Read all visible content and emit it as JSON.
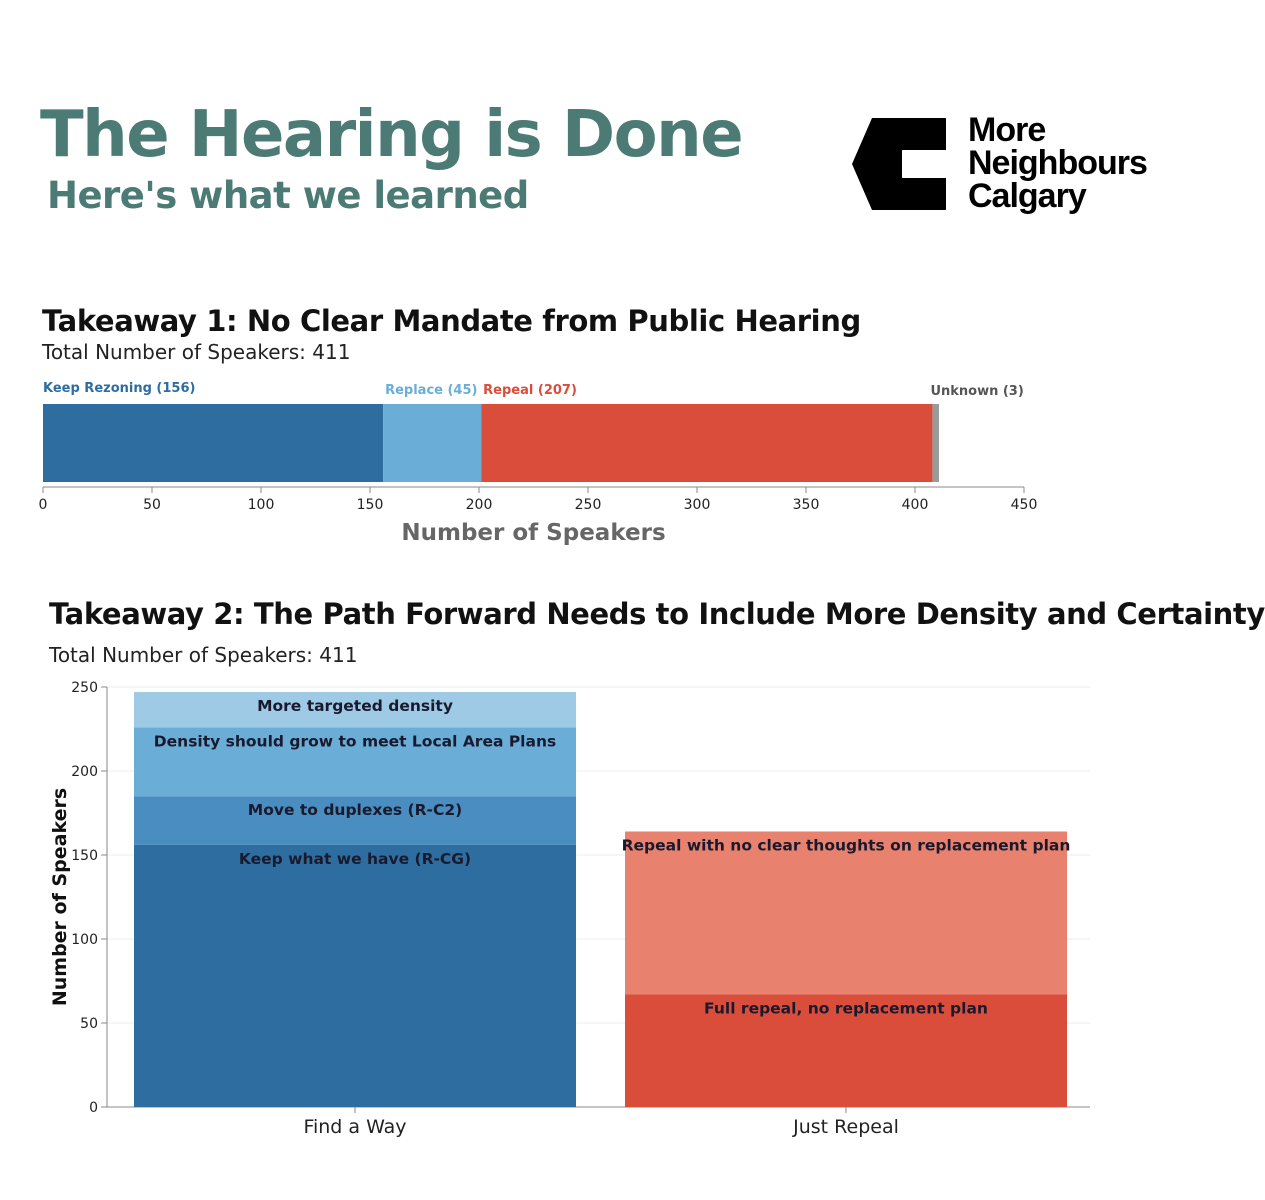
{
  "header": {
    "title": "The Hearing is Done",
    "subtitle": "Here's what we learned"
  },
  "logo": {
    "lines": [
      "More",
      "Neighbours",
      "Calgary"
    ],
    "icon": "more-neighbours-logo-icon"
  },
  "chart_data": [
    {
      "type": "bar",
      "orientation": "horizontal-stacked",
      "title": "Takeaway 1: No Clear Mandate from Public Hearing",
      "subtitle": "Total Number of Speakers: 411",
      "xlabel": "Number of Speakers",
      "ylabel": "",
      "xlim": [
        0,
        450
      ],
      "xticks": [
        0,
        50,
        100,
        150,
        200,
        250,
        300,
        350,
        400,
        450
      ],
      "grid": false,
      "segments": [
        {
          "name": "Keep Rezoning",
          "label": "Keep Rezoning (156)",
          "value": 156,
          "color": "#2e6da0"
        },
        {
          "name": "Replace",
          "label": "Replace (45)",
          "value": 45,
          "color": "#6aaed8"
        },
        {
          "name": "Repeal",
          "label": "Repeal (207)",
          "value": 207,
          "color": "#db4d3b"
        },
        {
          "name": "Unknown",
          "label": "Unknown (3)",
          "value": 3,
          "color": "#9a9a9a"
        }
      ],
      "label_colors": {
        "Keep Rezoning": "#2e6da0",
        "Replace": "#6aaed8",
        "Repeal": "#db4d3b",
        "Unknown": "#555555"
      }
    },
    {
      "type": "bar",
      "orientation": "vertical-stacked",
      "title": "Takeaway 2: The Path Forward Needs to Include More Density and Certainty",
      "subtitle": "Total Number of Speakers: 411",
      "xlabel": "",
      "ylabel": "Number of Speakers",
      "ylim": [
        0,
        250
      ],
      "yticks": [
        0,
        50,
        100,
        150,
        200,
        250
      ],
      "grid": true,
      "categories": [
        "Find a Way",
        "Just Repeal"
      ],
      "stacks": [
        {
          "category": "Find a Way",
          "segments": [
            {
              "name": "Keep what we have (R-CG)",
              "value": 156,
              "color": "#2e6da0"
            },
            {
              "name": "Move to duplexes (R-C2)",
              "value": 29,
              "color": "#4a8dc0"
            },
            {
              "name": "Density should grow to meet Local Area Plans",
              "value": 41,
              "color": "#6aaed8"
            },
            {
              "name": "More targeted density",
              "value": 21,
              "color": "#9ecae6"
            }
          ]
        },
        {
          "category": "Just Repeal",
          "segments": [
            {
              "name": "Full repeal, no replacement plan",
              "value": 67,
              "color": "#db4d3b"
            },
            {
              "name": "Repeal with no clear thoughts on replacement plan",
              "value": 97,
              "color": "#e8816e"
            }
          ]
        }
      ]
    }
  ]
}
